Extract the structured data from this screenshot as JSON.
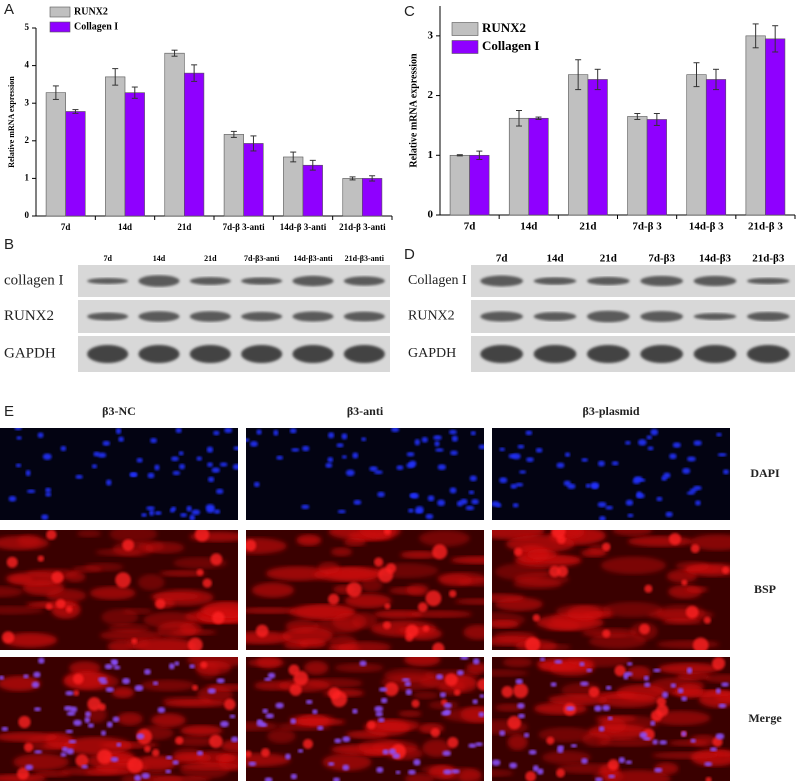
{
  "panel_labels": [
    "A",
    "B",
    "C",
    "D",
    "E"
  ],
  "chart_data": [
    {
      "type": "bar",
      "y_label": "Relative mRNA expression",
      "categories": [
        "7d",
        "14d",
        "21d",
        "7d-β 3-anti",
        "14d-β 3-anti",
        "21d-β 3-anti"
      ],
      "series": [
        {
          "name": "RUNX2",
          "color": "#c0c0c0",
          "values": [
            3.28,
            3.7,
            4.33,
            2.17,
            1.57,
            1.0
          ],
          "errors": [
            0.18,
            0.22,
            0.08,
            0.08,
            0.13,
            0.04
          ]
        },
        {
          "name": "Collagen I",
          "color": "#8f00ff",
          "values": [
            2.78,
            3.28,
            3.8,
            1.93,
            1.35,
            1.0
          ],
          "errors": [
            0.05,
            0.15,
            0.22,
            0.2,
            0.13,
            0.07
          ]
        }
      ],
      "ylim": [
        0,
        5
      ],
      "yticks": [
        0,
        1,
        2,
        3,
        4,
        5
      ],
      "legend": "upper left"
    },
    {
      "type": "bar",
      "y_label": "Relative mRNA expression",
      "categories": [
        "7d",
        "14d",
        "21d",
        "7d-β 3",
        "14d-β 3",
        "21d-β 3"
      ],
      "series": [
        {
          "name": "RUNX2",
          "color": "#c0c0c0",
          "values": [
            1.0,
            1.62,
            2.35,
            1.65,
            2.35,
            3.0
          ],
          "errors": [
            0.01,
            0.13,
            0.25,
            0.05,
            0.2,
            0.2
          ]
        },
        {
          "name": "Collagen I",
          "color": "#8f00ff",
          "values": [
            1.0,
            1.62,
            2.27,
            1.6,
            2.27,
            2.95
          ],
          "errors": [
            0.07,
            0.02,
            0.17,
            0.1,
            0.17,
            0.22
          ]
        }
      ],
      "ylim": [
        0,
        3.5
      ],
      "yticks": [
        0,
        1,
        2,
        3
      ],
      "legend": "upper left"
    }
  ],
  "blot_b": {
    "lanes": [
      "7d",
      "14d",
      "21d",
      "7d-β3-anti",
      "14d-β3-anti",
      "21d-β3-anti"
    ],
    "rows": [
      "collagen I",
      "RUNX2",
      "GAPDH"
    ]
  },
  "blot_d": {
    "lanes": [
      "7d",
      "14d",
      "21d",
      "7d-β3",
      "14d-β3",
      "21d-β3"
    ],
    "rows": [
      "Collagen I",
      "RUNX2",
      "GAPDH"
    ]
  },
  "imaging": {
    "columns": [
      "β3-NC",
      "β3-anti",
      "β3-plasmid"
    ],
    "rows": [
      "DAPI",
      "BSP",
      "Merge"
    ]
  }
}
